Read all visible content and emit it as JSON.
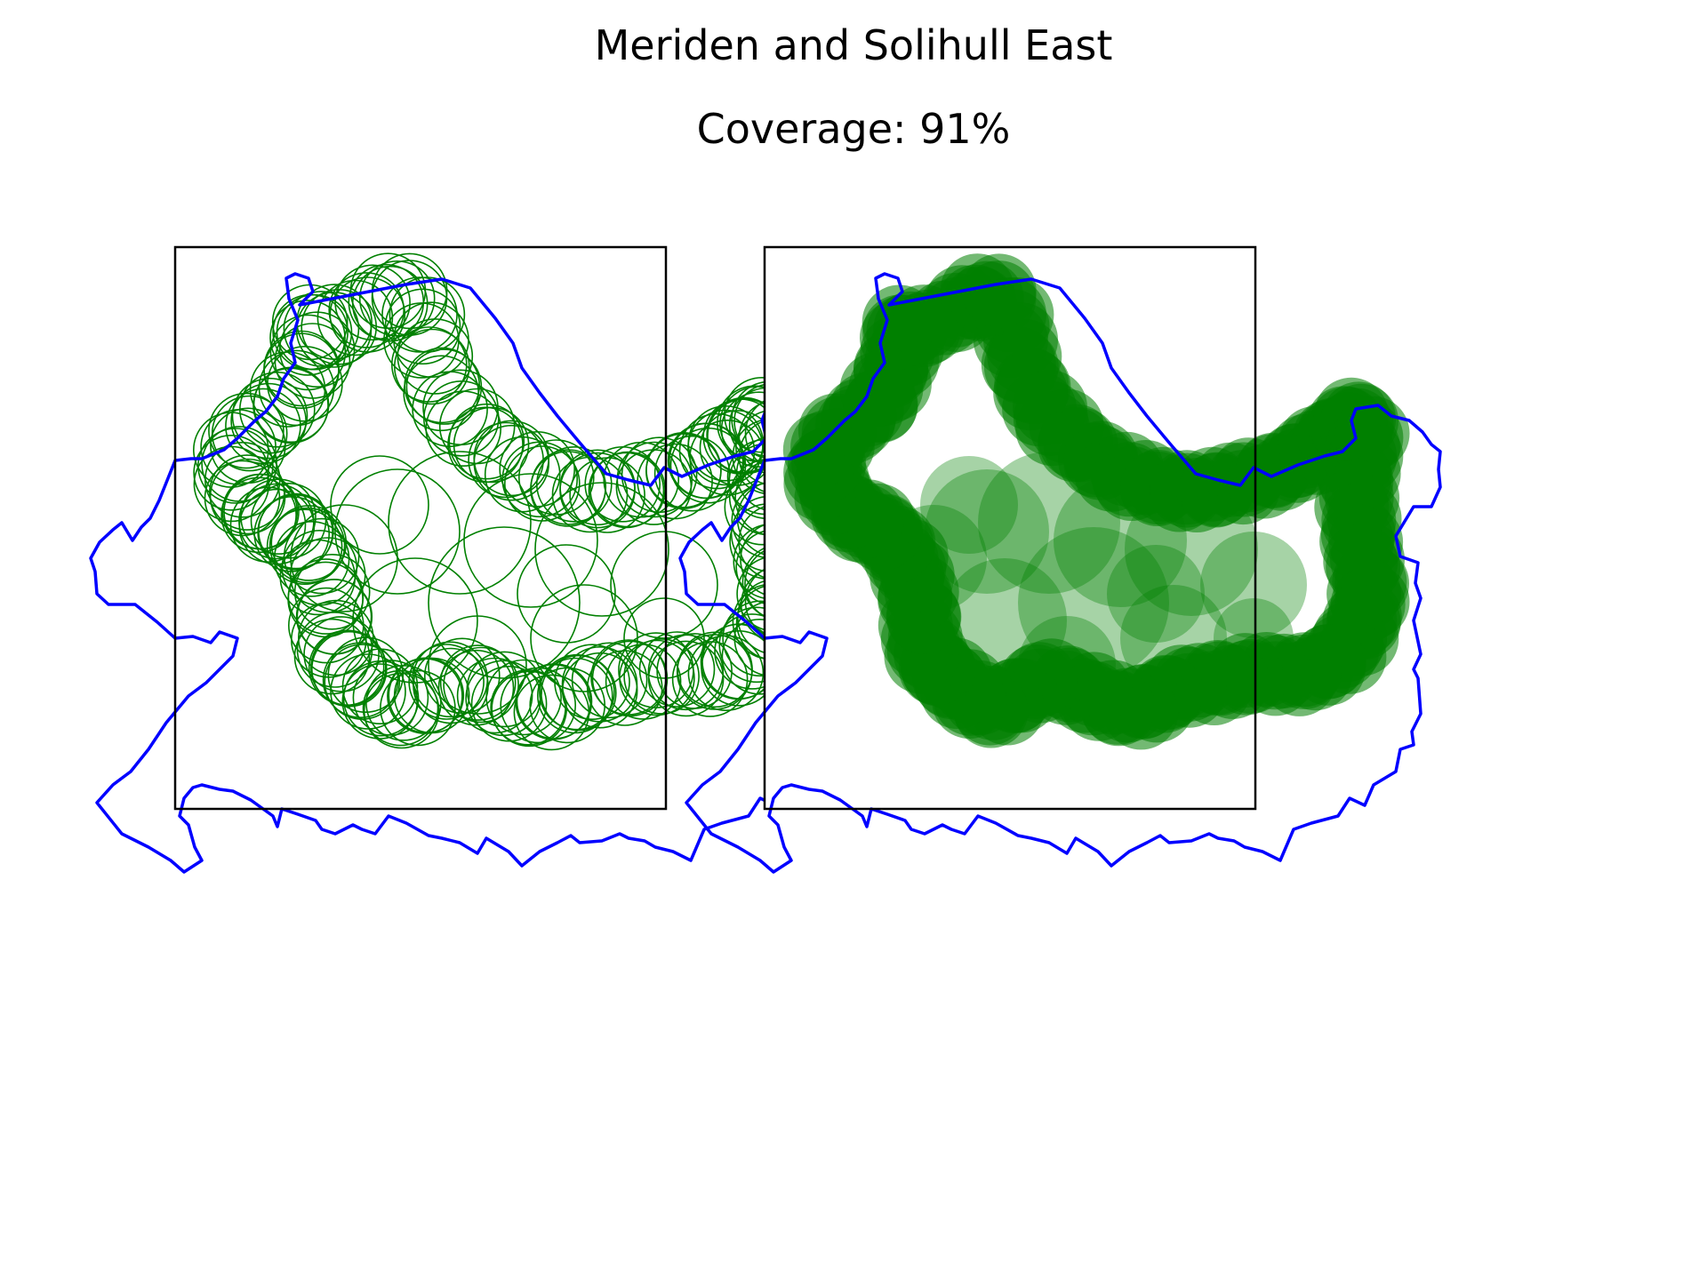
{
  "figure": {
    "title": "Meriden and Solihull East",
    "subtitle": "Coverage: 91%"
  },
  "colors": {
    "boundary": "#0000ff",
    "circles": "#008000",
    "frame": "#000000",
    "background": "#ffffff"
  },
  "panels": [
    {
      "name": "circle-outline-panel",
      "style": "outline"
    },
    {
      "name": "circle-filled-panel",
      "style": "filled"
    }
  ]
}
